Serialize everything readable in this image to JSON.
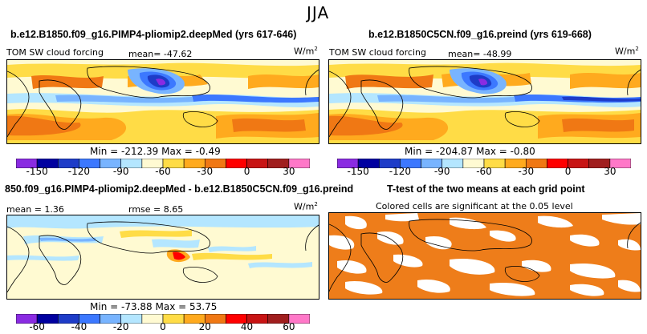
{
  "figure_title": "JJA",
  "panels": {
    "top_left": {
      "title": "b.e12.B1850.f09_g16.PIMP4-pliomip2.deepMed (yrs 617-646)",
      "variable": "TOM SW cloud forcing",
      "mean_label": "mean=",
      "mean_value": "-47.62",
      "units": "W/m",
      "units_exp": "2",
      "min_label": "Min =",
      "min_value": "-212.39",
      "max_label": "Max =",
      "max_value": "-0.49"
    },
    "top_right": {
      "title": "b.e12.B1850C5CN.f09_g16.preind (yrs 619-668)",
      "variable": "TOM SW cloud forcing",
      "mean_label": "mean=",
      "mean_value": "-48.99",
      "units": "W/m",
      "units_exp": "2",
      "min_label": "Min =",
      "min_value": "-204.87",
      "max_label": "Max =",
      "max_value": "-0.80"
    },
    "bottom_left": {
      "title": "850.f09_g16.PIMP4-pliomip2.deepMed - b.e12.B1850C5CN.f09_g16.preind",
      "mean_label": "mean =",
      "mean_value": "1.36",
      "rmse_label": "rmse =",
      "rmse_value": "8.65",
      "units": "W/m",
      "units_exp": "2",
      "min_label": "Min =",
      "min_value": "-73.88",
      "max_label": "Max =",
      "max_value": "53.75"
    },
    "bottom_right": {
      "title": "T-test of the two means at each grid point",
      "subtitle": "Colored cells are significant at the 0.05 level"
    }
  },
  "chart_data": [
    {
      "type": "heatmap",
      "name": "model-sw-cloud-forcing",
      "colorbar": {
        "ticks": [
          "-150",
          "-120",
          "-90",
          "-60",
          "-30",
          "0",
          "30"
        ],
        "colors": [
          "#8a2be2",
          "#0000a0",
          "#1e3cc8",
          "#3c78ff",
          "#78b4ff",
          "#b4e6ff",
          "#fffad2",
          "#ffdc46",
          "#ffaa1e",
          "#f07814",
          "#ff0000",
          "#c81414",
          "#a01e1e",
          "#ff78c8"
        ]
      }
    },
    {
      "type": "heatmap",
      "name": "preind-sw-cloud-forcing",
      "colorbar": {
        "ticks": [
          "-150",
          "-120",
          "-90",
          "-60",
          "-30",
          "0",
          "30"
        ],
        "colors": [
          "#8a2be2",
          "#0000a0",
          "#1e3cc8",
          "#3c78ff",
          "#78b4ff",
          "#b4e6ff",
          "#fffad2",
          "#ffdc46",
          "#ffaa1e",
          "#f07814",
          "#ff0000",
          "#c81414",
          "#a01e1e",
          "#ff78c8"
        ]
      }
    },
    {
      "type": "heatmap",
      "name": "difference",
      "colorbar": {
        "ticks": [
          "-60",
          "-40",
          "-20",
          "0",
          "20",
          "40",
          "60"
        ],
        "colors": [
          "#8a2be2",
          "#0000a0",
          "#1e3cc8",
          "#3c78ff",
          "#78b4ff",
          "#b4e6ff",
          "#fffad2",
          "#ffdc46",
          "#ffaa1e",
          "#f07814",
          "#ff0000",
          "#c81414",
          "#a01e1e",
          "#ff78c8"
        ]
      }
    },
    {
      "type": "heatmap",
      "name": "t-test-significance",
      "significant_color": "#ee7d1a",
      "not_significant_color": "#ffffff"
    }
  ]
}
